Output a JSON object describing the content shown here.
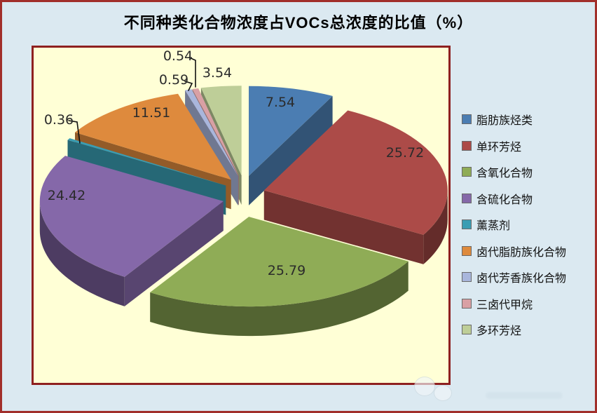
{
  "page": {
    "background": "#DBE9F1",
    "outer_border_color": "#A12F2B",
    "plot_area_bg": "#FFFFD6",
    "plot_area_border": "#8E2020"
  },
  "title": "不同种类化合物浓度占VOCs总浓度的比值（%）",
  "chart_data": {
    "type": "pie",
    "style": "3d-exploded",
    "title": "不同种类化合物浓度占VOCs总浓度的比值（%）",
    "unit": "%",
    "values_total": 100,
    "start_angle": "12-oclock-clockwise",
    "legend_position": "right",
    "grid": false,
    "series": [
      {
        "id": "aliphatic-hydrocarbons",
        "name": "脂肪族烃类",
        "value": 7.54,
        "color": "#4B7DB2"
      },
      {
        "id": "monocyclic-aromatics",
        "name": "单环芳烃",
        "value": 25.72,
        "color": "#AC4B48"
      },
      {
        "id": "oxygenated-compounds",
        "name": "含氧化合物",
        "value": 25.79,
        "color": "#8FAC56"
      },
      {
        "id": "sulfur-compounds",
        "name": "含硫化合物",
        "value": 24.42,
        "color": "#8568A9"
      },
      {
        "id": "fumigants",
        "name": "薰蒸剂",
        "value": 0.36,
        "color": "#3A9DB3"
      },
      {
        "id": "halogenated-aliphatics",
        "name": "卤代脂肪族化合物",
        "value": 11.51,
        "color": "#DE8A3D"
      },
      {
        "id": "halogenated-aromatics",
        "name": "卤代芳香族化合物",
        "value": 0.59,
        "color": "#A9B6DC"
      },
      {
        "id": "trihalomethanes",
        "name": "三卤代甲烷",
        "value": 0.54,
        "color": "#D9A0A4"
      },
      {
        "id": "polycyclic-aromatics",
        "name": "多环芳烃",
        "value": 3.54,
        "color": "#BECE98"
      }
    ]
  }
}
